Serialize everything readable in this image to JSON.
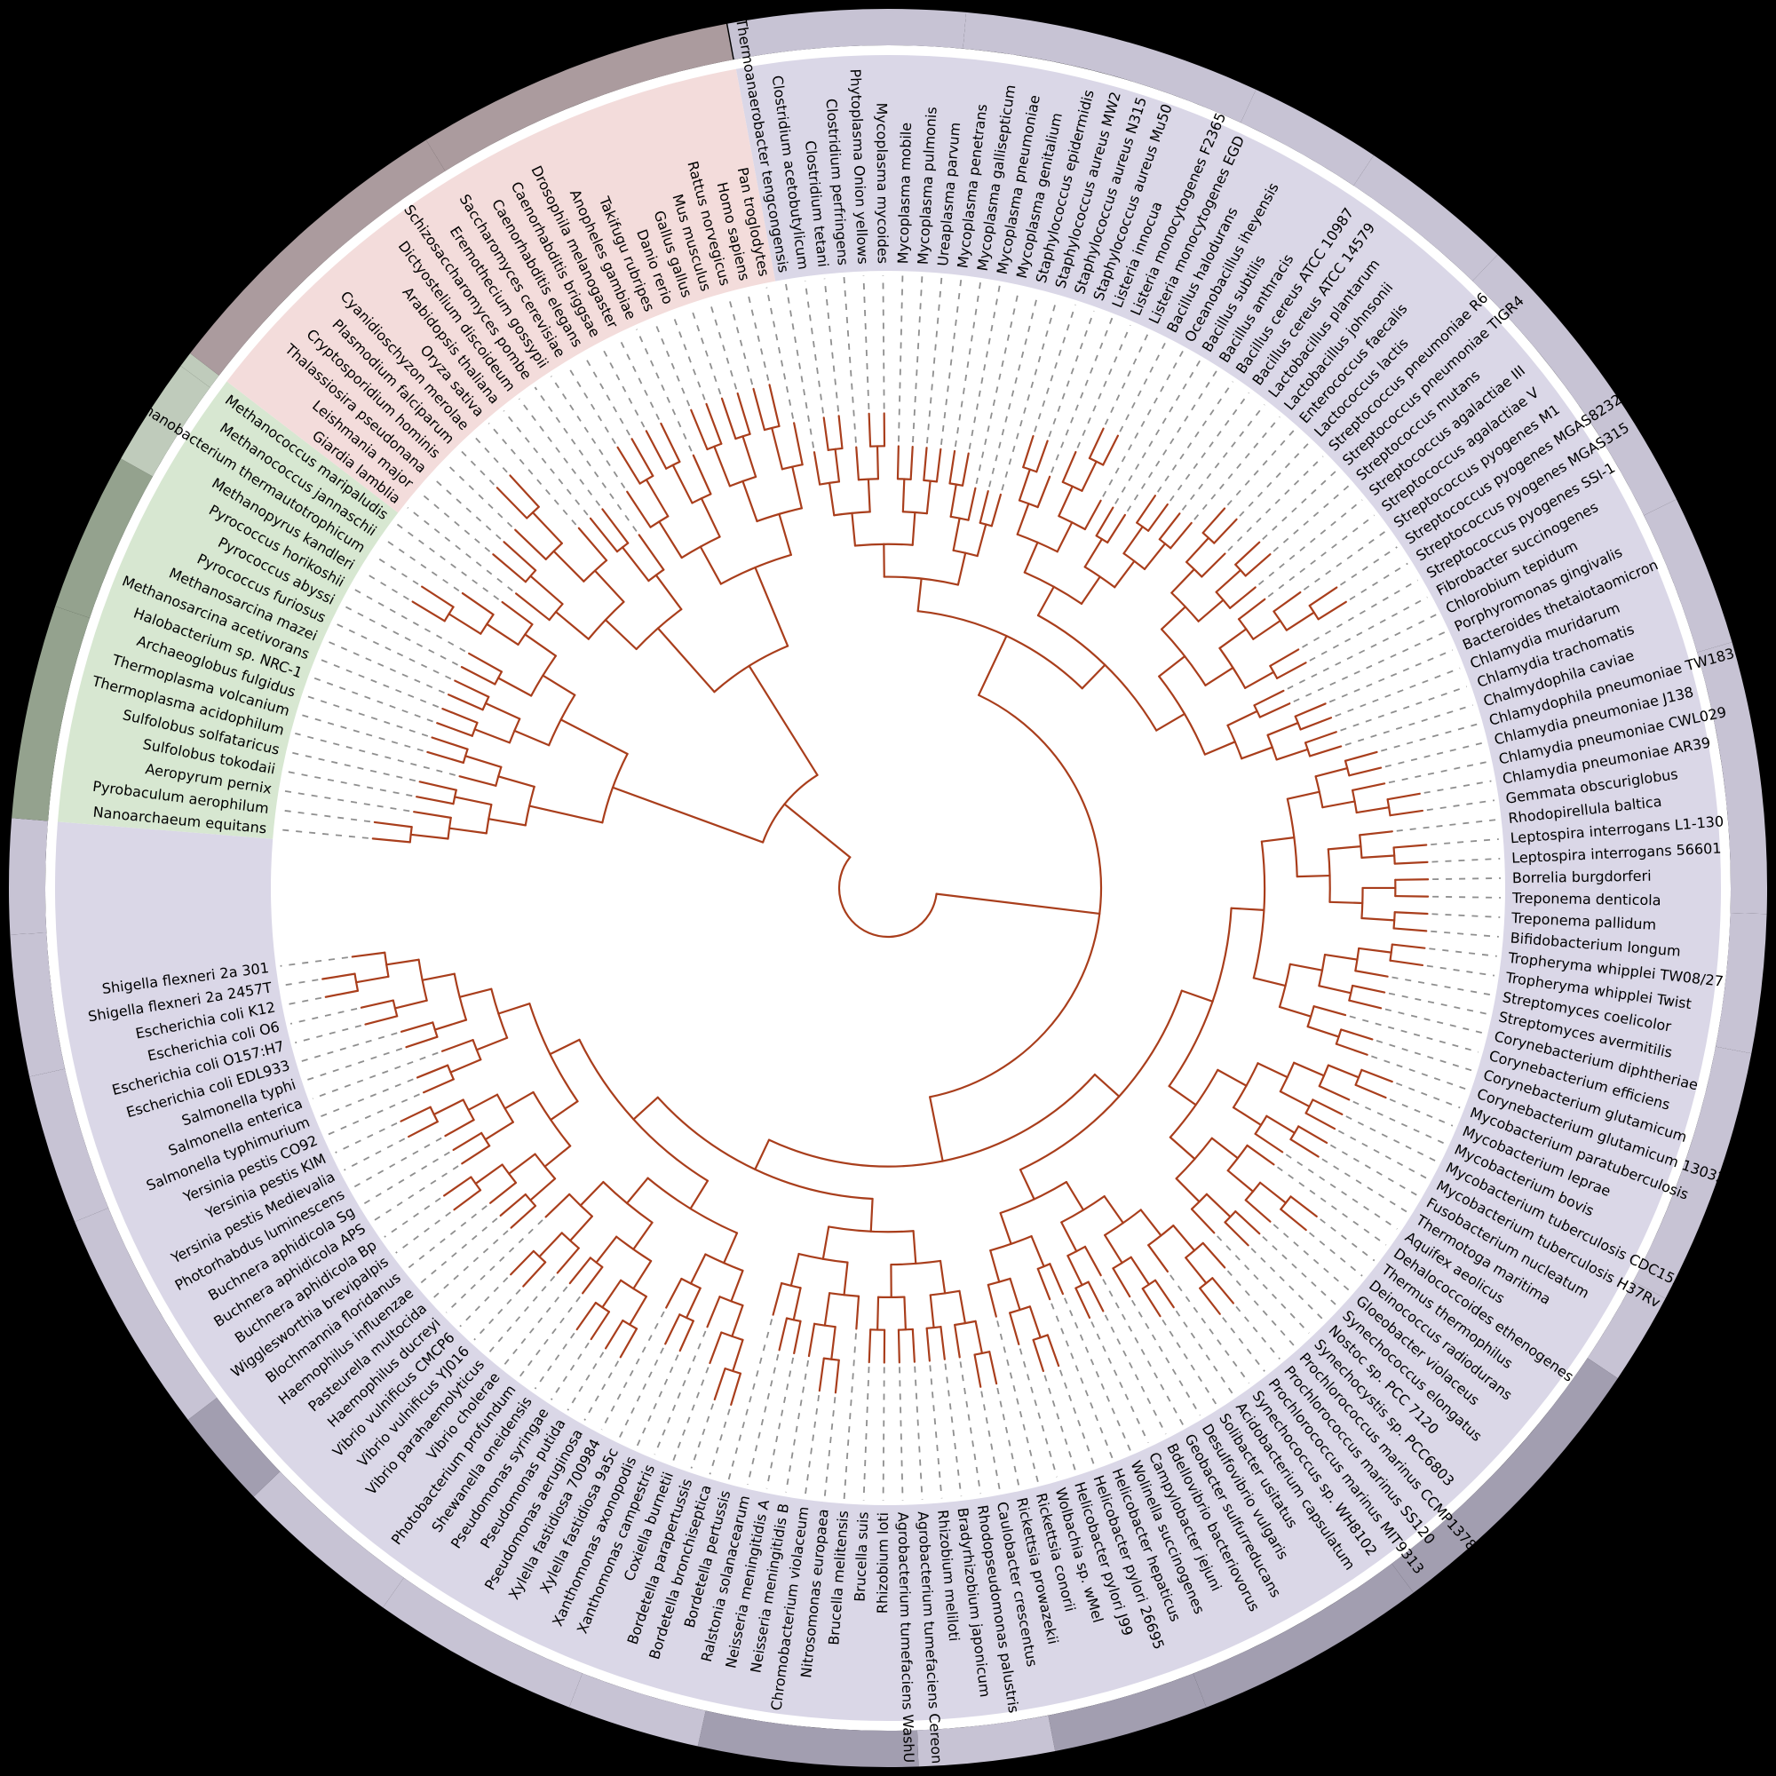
{
  "figure": {
    "type": "circular-phylogenetic-tree",
    "background": "#000000",
    "branch_color": "#a93e1c",
    "leader_color": "#8f8f8f",
    "label_color": "#000000",
    "inner_disc_color": "#ffffff",
    "domains": [
      {
        "key": "bacteria",
        "sector_color": "#dad7e7",
        "ring_light": "#c7c3d4",
        "ring_dark": "#a29eb0",
        "taxa": [
          "Thermoanaerobacter tengcongensis",
          "Clostridium acetobutylicum",
          "Clostridium tetani",
          "Clostridium perfringens",
          "Phytoplasma Onion yellows",
          "Mycoplasma mycoides",
          "Mycoplasma mobile",
          "Mycoplasma pulmonis",
          "Ureaplasma parvum",
          "Mycoplasma penetrans",
          "Mycoplasma gallisepticum",
          "Mycoplasma pneumoniae",
          "Mycoplasma genitalium",
          "Staphylococcus epidermidis",
          "Staphylococcus aureus MW2",
          "Staphylococcus aureus N315",
          "Staphylococcus aureus Mu50",
          "Listeria innocua",
          "Listeria monocytogenes F2365",
          "Listeria monocytogenes EGD",
          "Bacillus halodurans",
          "Oceanobacillus iheyensis",
          "Bacillus subtilis",
          "Bacillus anthracis",
          "Bacillus cereus ATCC 10987",
          "Bacillus cereus ATCC 14579",
          "Lactobacillus plantarum",
          "Lactobacillus johnsonii",
          "Enterococcus faecalis",
          "Lactococcus lactis",
          "Streptococcus pneumoniae R6",
          "Streptococcus pneumoniae TIGR4",
          "Streptococcus mutans",
          "Streptococcus agalactiae III",
          "Streptococcus agalactiae V",
          "Streptococcus pyogenes M1",
          "Streptococcus pyogenes MGAS8232",
          "Streptococcus pyogenes MGAS315",
          "Streptococcus pyogenes SSI-1",
          "Fibrobacter succinogenes",
          "Chlorobium tepidum",
          "Porphyromonas gingivalis",
          "Bacteroides thetaiotaomicron",
          "Chlamydia muridarum",
          "Chlamydia trachomatis",
          "Chalmydophila caviae",
          "Chlamydophila pneumoniae TW183",
          "Chlamydia pneumoniae J138",
          "Chlamydia pneumoniae CWL029",
          "Chlamydia pneumoniae AR39",
          "Gemmata obscuriglobus",
          "Rhodopirellula baltica",
          "Leptospira interrogans L1-130",
          "Leptospira interrogans 56601",
          "Borrelia burgdorferi",
          "Treponema denticola",
          "Treponema pallidum",
          "Bifidobacterium longum",
          "Tropheryma whipplei TW08/27",
          "Tropheryma whipplei Twist",
          "Streptomyces coelicolor",
          "Streptomyces avermitilis",
          "Corynebacterium diphtheriae",
          "Corynebacterium efficiens",
          "Corynebacterium glutamicum",
          "Corynebacterium glutamicum 13032",
          "Mycobacterium paratuberculosis",
          "Mycobacterium leprae",
          "Mycobacterium bovis",
          "Mycobacterium tuberculosis CDC1551",
          "Mycobacterium tuberculosis H37Rv",
          "Fusobacterium nucleatum",
          "Thermotoga maritima",
          "Aquifex aeolicus",
          "Dehalococcoides ethenogenes",
          "Thermus thermophilus",
          "Deinococcus radiodurans",
          "Gloeobacter violaceus",
          "Synechococcus elongatus",
          "Nostoc sp. PCC 7120",
          "Synechocystis sp. PCC6803",
          "Prochlorococcus marinus CCMP1378",
          "Prochlorococcus marinus SS120",
          "Prochlorococcus marinus MIT9313",
          "Synechococcus sp. WH8102",
          "Acidobacterium capsulatum",
          "Solibacter usitatus",
          "Desulfovibrio vulgaris",
          "Geobacter sulfurreducans",
          "Bdellovibrio bacteriovorus",
          "Campylobacter jejuni",
          "Wolinella succinogenes",
          "Helicobacter hepaticus",
          "Helicobacter pylori 26695",
          "Helicobacter pylori J99",
          "Wolbachia sp. wMel",
          "Rickettsia conorii",
          "Rickettsia prowazekii",
          "Caulobacter crescentus",
          "Rhodopseudomonas palustris",
          "Bradyrhizobium japonicum",
          "Rhizobium meliloti",
          "Agrobacterium tumefaciens Cereon",
          "Agrobacterium tumefaciens WashU",
          "Rhizobium loti",
          "Brucella suis",
          "Brucella melitensis",
          "Nitrosomonas europaea",
          "Chromobacterium violaceum",
          "Neisseria meningitidis B",
          "Neisseria meningitidis A",
          "Ralstonia solanacearum",
          "Bordetella pertussis",
          "Bordetella bronchiseptica",
          "Bordetella parapertussis",
          "Coxiella burnetii",
          "Xanthomonas campestris",
          "Xanthomonas axonopodis",
          "Xylella fastidiosa 9a5c",
          "Xylella fastidiosa 700984",
          "Pseudomonas aeruginosa",
          "Pseudomonas putida",
          "Pseudomonas syringae",
          "Shewanella oneidensis",
          "Photobacterium profundum",
          "Vibrio cholerae",
          "Vibrio parahaemolyticus",
          "Vibrio vulnificus YJ016",
          "Vibrio vulnificus CMCP6",
          "Haemophilus ducreyi",
          "Pasteurella multocida",
          "Haemophilus influenzae",
          "Blochmannia floridanus",
          "Wigglesworthia brevipalpis",
          "Buchnera aphidicola Bp",
          "Buchnera aphidicola APS",
          "Buchnera aphidicola Sg",
          "Photorhabdus luminescens",
          "Yersinia pestis Medievalia",
          "Yersinia pestis KIM",
          "Yersinia pestis CO92",
          "Salmonella typhimurium",
          "Salmonella enterica",
          "Salmonella typhi",
          "Escherichia coli EDL933",
          "Escherichia coli O157:H7",
          "Escherichia coli O6",
          "Escherichia coli K12",
          "Shigella flexneri 2a 2457T",
          "Shigella flexneri 2a 301"
        ]
      },
      {
        "key": "archaea",
        "sector_color": "#d7e7d1",
        "ring_light": "#bfcbbb",
        "ring_dark": "#94a28e",
        "taxa": [
          "Nanoarchaeum equitans",
          "Pyrobaculum aerophilum",
          "Aeropyrum pernix",
          "Sulfolobus tokodaii",
          "Sulfolobus solfataricus",
          "Thermoplasma acidophilum",
          "Thermoplasma volcanium",
          "Archaeoglobus fulgidus",
          "Halobacterium sp. NRC-1",
          "Methanosarcina acetivorans",
          "Methanosarcina mazei",
          "Pyrococcus furiosus",
          "Pyrococcus abyssi",
          "Pyrococcus horikoshii",
          "Methanopyrus kandleri",
          "Methanobacterium thermautotrophicum",
          "Methanococcus jannaschii",
          "Methanococcus maripaludis"
        ]
      },
      {
        "key": "eukaryota",
        "sector_color": "#f3dcdb",
        "ring_light": "#cbbcbe",
        "ring_dark": "#ab9b9e",
        "taxa": [
          "Giardia lamblia",
          "Leishmania major",
          "Thalassiosira pseudonana",
          "Cryptosporidium hominis",
          "Plasmodium falciparum",
          "Cyanidioschyzon merolae",
          "Oryza sativa",
          "Arabidopsis thaliana",
          "Dictyostelium discoideum",
          "Schizosaccharomyces pombe",
          "Eremothecium gossypii",
          "Saccharomyces cerevisiae",
          "Caenorhabditis elegans",
          "Caenorhabditis briggsae",
          "Drosophila melanogaster",
          "Anopheles gambiae",
          "Takifugu rubripes",
          "Danio rerio",
          "Gallus gallus",
          "Mus musculus",
          "Rattus norvegicus",
          "Homo sapiens",
          "Pan troglodytes"
        ]
      }
    ]
  }
}
